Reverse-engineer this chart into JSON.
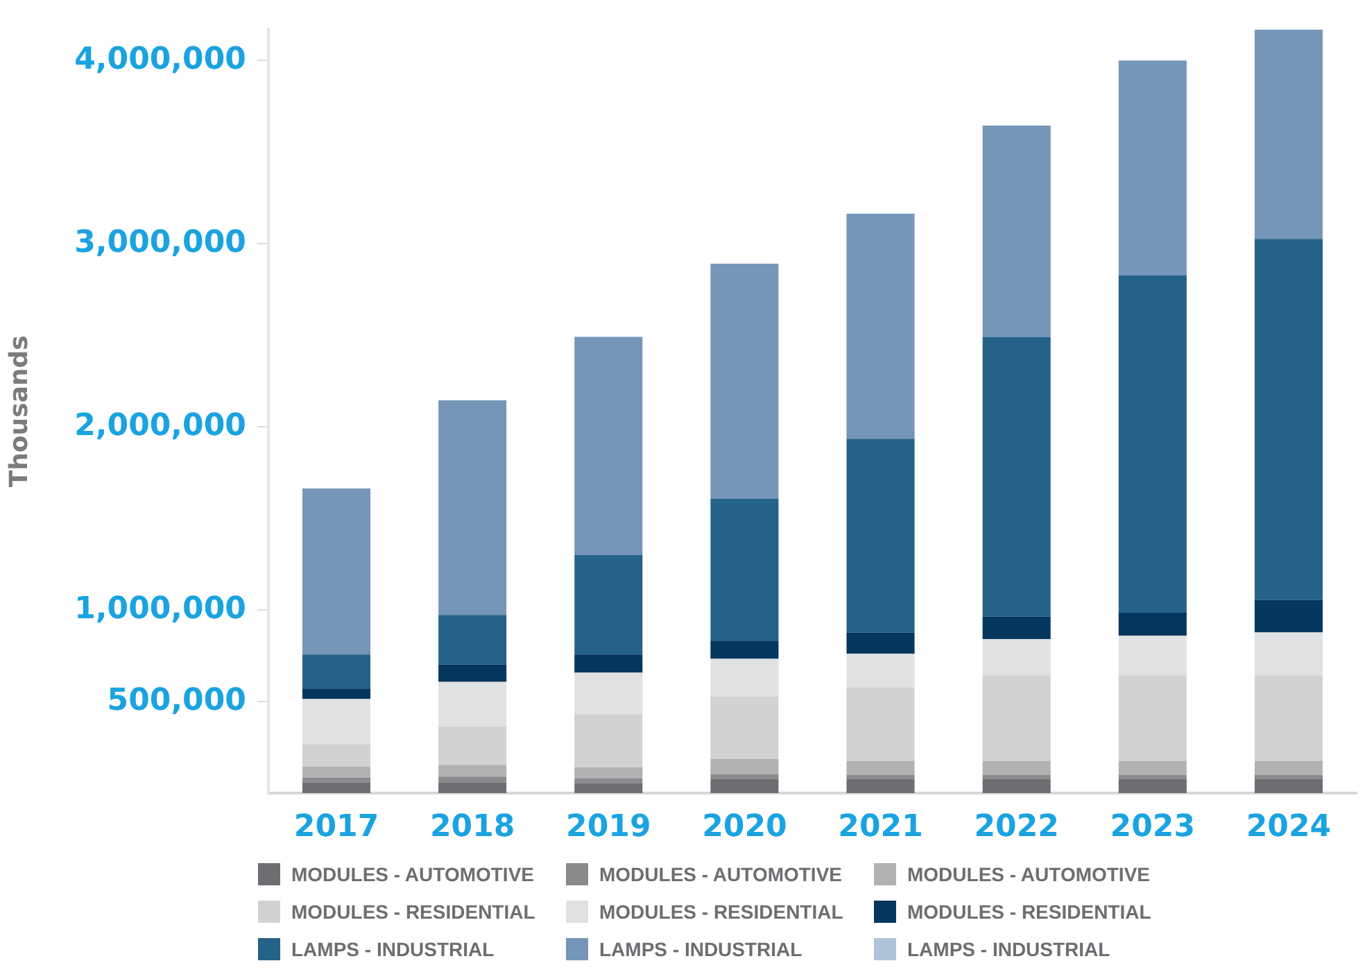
{
  "chart_data": {
    "type": "bar",
    "stacked": true,
    "ylabel": "Thousands",
    "categories": [
      "2017",
      "2018",
      "2019",
      "2020",
      "2021",
      "2022",
      "2023",
      "2024"
    ],
    "series": [
      {
        "name": "MODULES - AUTOMOTIVE",
        "color": "#6d6e71",
        "values": [
          59000,
          59000,
          55000,
          77000,
          77000,
          77000,
          77000,
          77000
        ]
      },
      {
        "name": "MODULES - AUTOMOTIVE",
        "color": "#898a8c",
        "values": [
          27000,
          32000,
          27000,
          28000,
          23000,
          23000,
          23000,
          23000
        ]
      },
      {
        "name": "MODULES - AUTOMOTIVE",
        "color": "#b1b2b4",
        "values": [
          59000,
          64000,
          59000,
          81000,
          77000,
          77000,
          77000,
          77000
        ]
      },
      {
        "name": "MODULES - RESIDENTIAL",
        "color": "#d1d2d4",
        "values": [
          123000,
          209000,
          291000,
          341000,
          400000,
          467000,
          467000,
          467000
        ]
      },
      {
        "name": "MODULES - RESIDENTIAL",
        "color": "#e0e1e2",
        "values": [
          246000,
          244000,
          226000,
          207000,
          184000,
          198000,
          216000,
          234000
        ]
      },
      {
        "name": "MODULES - RESIDENTIAL",
        "color": "#05365e",
        "values": [
          58000,
          95000,
          99000,
          99000,
          117000,
          122000,
          126000,
          177000
        ]
      },
      {
        "name": "LAMPS - INDUSTRIAL",
        "color": "#256289",
        "values": [
          185000,
          270000,
          543000,
          776000,
          1058000,
          1527000,
          1841000,
          1972000
        ]
      },
      {
        "name": "LAMPS - INDUSTRIAL",
        "color": "#7596b9",
        "values": [
          907000,
          1172000,
          1191000,
          1282000,
          1228000,
          1154000,
          1173000,
          1143000
        ]
      },
      {
        "name": "LAMPS - INDUSTRIAL",
        "color": "#afc4da",
        "values": [
          null,
          null,
          null,
          null,
          null,
          null,
          null,
          null
        ]
      }
    ],
    "ylim": [
      0,
      4170000
    ],
    "yticks": [
      {
        "value": 500000,
        "label": "500,000"
      },
      {
        "value": 1000000,
        "label": "1,000,000"
      },
      {
        "value": 2000000,
        "label": "2,000,000"
      },
      {
        "value": 3000000,
        "label": "3,000,000"
      },
      {
        "value": 4000000,
        "label": "4,000,000"
      }
    ],
    "grid": false,
    "legend": "bottom"
  }
}
